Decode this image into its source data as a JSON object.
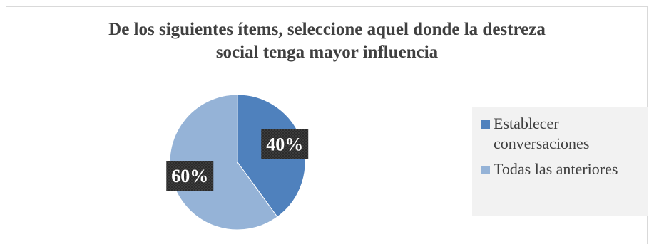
{
  "chart_data": {
    "type": "pie",
    "title": "De los siguientes ítems, seleccione aquel donde la destreza\nsocial tenga mayor influencia",
    "categories": [
      "Establecer conversaciones",
      "Todas las anteriores"
    ],
    "values": [
      40,
      60
    ],
    "data_labels": [
      "40%",
      "60%"
    ],
    "colors": [
      "#4f81bd",
      "#95b3d7"
    ],
    "legend": {
      "placement": "right",
      "entries": [
        "Establecer\nconversaciones",
        "Todas las anteriores"
      ]
    }
  }
}
